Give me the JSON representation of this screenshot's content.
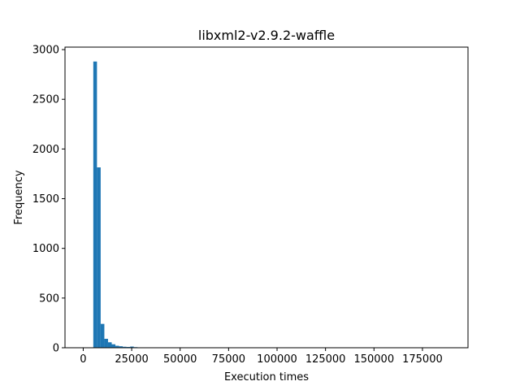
{
  "chart_data": {
    "type": "bar",
    "title": "libxml2-v2.9.2-waffle",
    "xlabel": "Execution times",
    "ylabel": "Frequency",
    "xlim": [
      -9400,
      198500
    ],
    "ylim": [
      0,
      3025
    ],
    "xticks": [
      0,
      25000,
      50000,
      75000,
      100000,
      125000,
      150000,
      175000
    ],
    "xtick_labels": [
      "0",
      "25000",
      "50000",
      "75000",
      "100000",
      "125000",
      "150000",
      "175000"
    ],
    "yticks": [
      0,
      500,
      1000,
      1500,
      2000,
      2500,
      3000
    ],
    "ytick_labels": [
      "0",
      "500",
      "1000",
      "1500",
      "2000",
      "2500",
      "3000"
    ],
    "bar_color": "#1f77b4",
    "bin_width": 1900,
    "bins_start": [
      5200,
      7100,
      9000,
      10900,
      12800,
      14700,
      16600,
      18500,
      20400,
      22300,
      24200,
      26100,
      28000,
      29900,
      31800,
      33700,
      35600,
      37500,
      39400,
      41300
    ],
    "values": [
      2880,
      1815,
      240,
      90,
      55,
      35,
      20,
      15,
      10,
      8,
      12,
      6,
      3,
      2,
      2,
      1,
      1,
      1,
      1,
      1
    ],
    "grid": false,
    "legend": false
  }
}
